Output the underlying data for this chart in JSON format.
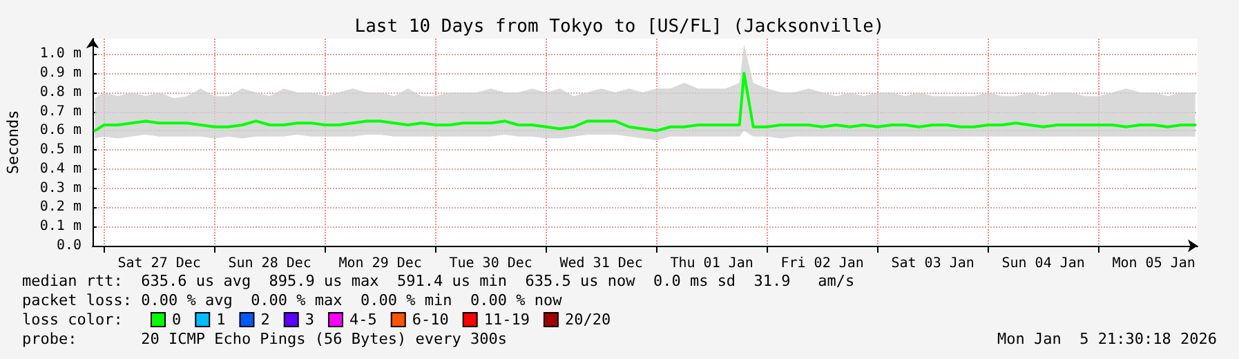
{
  "chart_data": {
    "type": "line",
    "title": "Last 10 Days from Tokyo to [US/FL] (Jacksonville)",
    "ylabel": "Seconds",
    "x": [
      "2025-12-26T22:00",
      "2025-12-27T00:00",
      "2025-12-27T03:00",
      "2025-12-27T06:00",
      "2025-12-27T09:00",
      "2025-12-27T12:00",
      "2025-12-27T15:00",
      "2025-12-27T18:00",
      "2025-12-27T21:00",
      "2025-12-28T00:00",
      "2025-12-28T03:00",
      "2025-12-28T06:00",
      "2025-12-28T09:00",
      "2025-12-28T12:00",
      "2025-12-28T15:00",
      "2025-12-28T18:00",
      "2025-12-28T21:00",
      "2025-12-29T00:00",
      "2025-12-29T03:00",
      "2025-12-29T06:00",
      "2025-12-29T09:00",
      "2025-12-29T12:00",
      "2025-12-29T15:00",
      "2025-12-29T18:00",
      "2025-12-29T21:00",
      "2025-12-30T00:00",
      "2025-12-30T03:00",
      "2025-12-30T06:00",
      "2025-12-30T09:00",
      "2025-12-30T12:00",
      "2025-12-30T15:00",
      "2025-12-30T18:00",
      "2025-12-30T21:00",
      "2025-12-31T00:00",
      "2025-12-31T03:00",
      "2025-12-31T06:00",
      "2025-12-31T09:00",
      "2025-12-31T12:00",
      "2025-12-31T15:00",
      "2025-12-31T18:00",
      "2025-12-31T21:00",
      "2026-01-01T00:00",
      "2026-01-01T03:00",
      "2026-01-01T06:00",
      "2026-01-01T09:00",
      "2026-01-01T12:00",
      "2026-01-01T15:00",
      "2026-01-01T18:00",
      "2026-01-01T19:00",
      "2026-01-01T21:00",
      "2026-01-02T00:00",
      "2026-01-02T03:00",
      "2026-01-02T06:00",
      "2026-01-02T09:00",
      "2026-01-02T12:00",
      "2026-01-02T15:00",
      "2026-01-02T18:00",
      "2026-01-02T21:00",
      "2026-01-03T00:00",
      "2026-01-03T03:00",
      "2026-01-03T06:00",
      "2026-01-03T09:00",
      "2026-01-03T12:00",
      "2026-01-03T15:00",
      "2026-01-03T18:00",
      "2026-01-03T21:00",
      "2026-01-04T00:00",
      "2026-01-04T03:00",
      "2026-01-04T06:00",
      "2026-01-04T09:00",
      "2026-01-04T12:00",
      "2026-01-04T15:00",
      "2026-01-04T18:00",
      "2026-01-04T21:00",
      "2026-01-05T00:00",
      "2026-01-05T03:00",
      "2026-01-05T06:00",
      "2026-01-05T09:00",
      "2026-01-05T12:00",
      "2026-01-05T15:00",
      "2026-01-05T18:00",
      "2026-01-05T21:00"
    ],
    "series": [
      {
        "name": "0",
        "color": "#00ff00",
        "values": [
          0.6,
          0.63,
          0.63,
          0.64,
          0.65,
          0.64,
          0.64,
          0.64,
          0.63,
          0.62,
          0.62,
          0.63,
          0.65,
          0.63,
          0.63,
          0.64,
          0.64,
          0.63,
          0.63,
          0.64,
          0.65,
          0.65,
          0.64,
          0.63,
          0.64,
          0.63,
          0.63,
          0.64,
          0.64,
          0.64,
          0.65,
          0.63,
          0.63,
          0.62,
          0.61,
          0.62,
          0.65,
          0.65,
          0.65,
          0.62,
          0.61,
          0.6,
          0.62,
          0.62,
          0.63,
          0.63,
          0.63,
          0.63,
          0.9,
          0.62,
          0.62,
          0.63,
          0.63,
          0.63,
          0.62,
          0.63,
          0.62,
          0.63,
          0.62,
          0.63,
          0.63,
          0.62,
          0.63,
          0.63,
          0.62,
          0.62,
          0.63,
          0.63,
          0.64,
          0.63,
          0.62,
          0.63,
          0.63,
          0.63,
          0.63,
          0.63,
          0.62,
          0.63,
          0.63,
          0.62,
          0.63,
          0.63
        ],
        "lower": [
          0.56,
          0.57,
          0.56,
          0.57,
          0.58,
          0.57,
          0.57,
          0.57,
          0.57,
          0.56,
          0.57,
          0.56,
          0.57,
          0.57,
          0.57,
          0.58,
          0.57,
          0.57,
          0.57,
          0.57,
          0.58,
          0.58,
          0.57,
          0.57,
          0.57,
          0.57,
          0.57,
          0.57,
          0.57,
          0.57,
          0.58,
          0.57,
          0.57,
          0.56,
          0.56,
          0.57,
          0.58,
          0.58,
          0.58,
          0.57,
          0.56,
          0.55,
          0.57,
          0.57,
          0.57,
          0.57,
          0.57,
          0.57,
          0.6,
          0.57,
          0.57,
          0.56,
          0.57,
          0.57,
          0.57,
          0.57,
          0.57,
          0.57,
          0.57,
          0.57,
          0.57,
          0.57,
          0.57,
          0.57,
          0.57,
          0.57,
          0.57,
          0.57,
          0.57,
          0.57,
          0.57,
          0.57,
          0.57,
          0.57,
          0.57,
          0.57,
          0.57,
          0.57,
          0.57,
          0.57,
          0.57,
          0.57
        ],
        "upper": [
          0.77,
          0.8,
          0.78,
          0.8,
          0.78,
          0.8,
          0.77,
          0.78,
          0.82,
          0.78,
          0.78,
          0.82,
          0.8,
          0.78,
          0.82,
          0.8,
          0.8,
          0.78,
          0.8,
          0.82,
          0.8,
          0.8,
          0.78,
          0.82,
          0.78,
          0.78,
          0.8,
          0.8,
          0.8,
          0.82,
          0.8,
          0.8,
          0.82,
          0.8,
          0.82,
          0.78,
          0.8,
          0.82,
          0.8,
          0.82,
          0.8,
          0.82,
          0.82,
          0.85,
          0.82,
          0.82,
          0.82,
          0.85,
          1.05,
          0.85,
          0.82,
          0.8,
          0.8,
          0.82,
          0.8,
          0.78,
          0.8,
          0.78,
          0.8,
          0.8,
          0.78,
          0.8,
          0.78,
          0.78,
          0.78,
          0.78,
          0.8,
          0.78,
          0.78,
          0.8,
          0.78,
          0.8,
          0.8,
          0.78,
          0.78,
          0.8,
          0.82,
          0.8,
          0.8,
          0.78,
          0.8,
          0.8
        ]
      },
      {
        "name": "1",
        "color": "#00bbff",
        "values": [
          null,
          null,
          null,
          null,
          null,
          null,
          null,
          null,
          null,
          null,
          null,
          null,
          null,
          null,
          null,
          null,
          null,
          null,
          null,
          null,
          null,
          null,
          null,
          null,
          null,
          null,
          null,
          null,
          null,
          null,
          null,
          null,
          null,
          null,
          null,
          null,
          null,
          null,
          null,
          null,
          null,
          null,
          null,
          null,
          null,
          null,
          null,
          null,
          null,
          null,
          null,
          null,
          null,
          null,
          null,
          null,
          null,
          null,
          null,
          null,
          null,
          null,
          null,
          null,
          null,
          null,
          null,
          null,
          null,
          null,
          null,
          null,
          null,
          null,
          null,
          null,
          null,
          null,
          null,
          null,
          null,
          null
        ]
      },
      {
        "name": "2",
        "color": "#0059ff",
        "values": [
          null,
          null,
          null,
          null,
          null,
          null,
          null,
          null,
          null,
          null,
          null,
          null,
          null,
          null,
          null,
          null,
          null,
          null,
          null,
          null,
          null,
          null,
          null,
          null,
          null,
          null,
          null,
          null,
          null,
          null,
          null,
          null,
          null,
          null,
          null,
          null,
          null,
          null,
          null,
          null,
          null,
          null,
          null,
          null,
          null,
          null,
          null,
          null,
          null,
          null,
          null,
          null,
          null,
          null,
          null,
          null,
          null,
          null,
          null,
          null,
          null,
          null,
          null,
          null,
          null,
          null,
          null,
          null,
          null,
          null,
          null,
          null,
          null,
          null,
          null,
          null,
          null,
          null,
          null,
          null,
          null,
          null
        ]
      },
      {
        "name": "3",
        "color": "#5e00ff",
        "values": [
          null,
          null,
          null,
          null,
          null,
          null,
          null,
          null,
          null,
          null,
          null,
          null,
          null,
          null,
          null,
          null,
          null,
          null,
          null,
          null,
          null,
          null,
          null,
          null,
          null,
          null,
          null,
          null,
          null,
          null,
          null,
          null,
          null,
          null,
          null,
          null,
          null,
          null,
          null,
          null,
          null,
          null,
          null,
          null,
          null,
          null,
          null,
          null,
          null,
          null,
          null,
          null,
          null,
          null,
          null,
          null,
          null,
          null,
          null,
          null,
          null,
          null,
          null,
          null,
          null,
          null,
          null,
          null,
          null,
          null,
          null,
          null,
          null,
          null,
          null,
          null,
          null,
          null,
          null,
          null,
          null,
          null
        ]
      },
      {
        "name": "4-5",
        "color": "#ff00ff",
        "values": [
          null,
          null,
          null,
          null,
          null,
          null,
          null,
          null,
          null,
          null,
          null,
          null,
          null,
          null,
          null,
          null,
          null,
          null,
          null,
          null,
          null,
          null,
          null,
          null,
          null,
          null,
          null,
          null,
          null,
          null,
          null,
          null,
          null,
          null,
          null,
          null,
          null,
          null,
          null,
          null,
          null,
          null,
          null,
          null,
          null,
          null,
          null,
          null,
          null,
          null,
          null,
          null,
          null,
          null,
          null,
          null,
          null,
          null,
          null,
          null,
          null,
          null,
          null,
          null,
          null,
          null,
          null,
          null,
          null,
          null,
          null,
          null,
          null,
          null,
          null,
          null,
          null,
          null,
          null,
          null,
          null,
          null
        ]
      },
      {
        "name": "6-10",
        "color": "#ff5500",
        "values": [
          null,
          null,
          null,
          null,
          null,
          null,
          null,
          null,
          null,
          null,
          null,
          null,
          null,
          null,
          null,
          null,
          null,
          null,
          null,
          null,
          null,
          null,
          null,
          null,
          null,
          null,
          null,
          null,
          null,
          null,
          null,
          null,
          null,
          null,
          null,
          null,
          null,
          null,
          null,
          null,
          null,
          null,
          null,
          null,
          null,
          null,
          null,
          null,
          null,
          null,
          null,
          null,
          null,
          null,
          null,
          null,
          null,
          null,
          null,
          null,
          null,
          null,
          null,
          null,
          null,
          null,
          null,
          null,
          null,
          null,
          null,
          null,
          null,
          null,
          null,
          null,
          null,
          null,
          null,
          null,
          null,
          null
        ]
      },
      {
        "name": "11-19",
        "color": "#ff0000",
        "values": [
          null,
          null,
          null,
          null,
          null,
          null,
          null,
          null,
          null,
          null,
          null,
          null,
          null,
          null,
          null,
          null,
          null,
          null,
          null,
          null,
          null,
          null,
          null,
          null,
          null,
          null,
          null,
          null,
          null,
          null,
          null,
          null,
          null,
          null,
          null,
          null,
          null,
          null,
          null,
          null,
          null,
          null,
          null,
          null,
          null,
          null,
          null,
          null,
          null,
          null,
          null,
          null,
          null,
          null,
          null,
          null,
          null,
          null,
          null,
          null,
          null,
          null,
          null,
          null,
          null,
          null,
          null,
          null,
          null,
          null,
          null,
          null,
          null,
          null,
          null,
          null,
          null,
          null,
          null,
          null,
          null,
          null
        ]
      },
      {
        "name": "20/20",
        "color": "#a10000",
        "values": [
          null,
          null,
          null,
          null,
          null,
          null,
          null,
          null,
          null,
          null,
          null,
          null,
          null,
          null,
          null,
          null,
          null,
          null,
          null,
          null,
          null,
          null,
          null,
          null,
          null,
          null,
          null,
          null,
          null,
          null,
          null,
          null,
          null,
          null,
          null,
          null,
          null,
          null,
          null,
          null,
          null,
          null,
          null,
          null,
          null,
          null,
          null,
          null,
          null,
          null,
          null,
          null,
          null,
          null,
          null,
          null,
          null,
          null,
          null,
          null,
          null,
          null,
          null,
          null,
          null,
          null,
          null,
          null,
          null,
          null,
          null,
          null,
          null,
          null,
          null,
          null,
          null,
          null,
          null,
          null,
          null,
          null
        ]
      }
    ],
    "xlim": [
      "2025-12-26T21:30",
      "2026-01-05T21:30"
    ],
    "xticks": [
      {
        "value": "2025-12-27T00:00",
        "label": null
      },
      {
        "value": "2025-12-27T12:00",
        "label": "Sat 27 Dec"
      },
      {
        "value": "2025-12-28T00:00",
        "label": null
      },
      {
        "value": "2025-12-28T12:00",
        "label": "Sun 28 Dec"
      },
      {
        "value": "2025-12-29T00:00",
        "label": null
      },
      {
        "value": "2025-12-29T12:00",
        "label": "Mon 29 Dec"
      },
      {
        "value": "2025-12-30T00:00",
        "label": null
      },
      {
        "value": "2025-12-30T12:00",
        "label": "Tue 30 Dec"
      },
      {
        "value": "2025-12-31T00:00",
        "label": null
      },
      {
        "value": "2025-12-31T12:00",
        "label": "Wed 31 Dec"
      },
      {
        "value": "2026-01-01T00:00",
        "label": null
      },
      {
        "value": "2026-01-01T12:00",
        "label": "Thu 01 Jan"
      },
      {
        "value": "2026-01-02T00:00",
        "label": null
      },
      {
        "value": "2026-01-02T12:00",
        "label": "Fri 02 Jan"
      },
      {
        "value": "2026-01-03T00:00",
        "label": null
      },
      {
        "value": "2026-01-03T12:00",
        "label": "Sat 03 Jan"
      },
      {
        "value": "2026-01-04T00:00",
        "label": null
      },
      {
        "value": "2026-01-04T12:00",
        "label": "Sun 04 Jan"
      },
      {
        "value": "2026-01-05T00:00",
        "label": null
      },
      {
        "value": "2026-01-05T12:00",
        "label": "Mon 05 Jan"
      }
    ],
    "ylim": [
      0,
      1.08
    ],
    "yticks": [
      {
        "value": 0,
        "label": "0.0"
      },
      {
        "value": 0.1,
        "label": "0.1 m"
      },
      {
        "value": 0.2,
        "label": "0.2 m"
      },
      {
        "value": 0.3,
        "label": "0.3 m"
      },
      {
        "value": 0.4,
        "label": "0.4 m"
      },
      {
        "value": 0.5,
        "label": "0.5 m"
      },
      {
        "value": 0.6,
        "label": "0.6 m"
      },
      {
        "value": 0.7,
        "label": "0.7 m"
      },
      {
        "value": 0.8,
        "label": "0.8 m"
      },
      {
        "value": 0.9,
        "label": "0.9 m"
      },
      {
        "value": 1.0,
        "label": "1.0 m"
      }
    ],
    "grid": true,
    "legend": "bottom",
    "marker": "none",
    "line_style": "solid",
    "annotations": [
      "median rtt:  635.6 us avg  895.9 us max  591.4 us min  635.5 us now  0.0 ms sd  31.9   am/s",
      "packet loss: 0.00 % avg  0.00 % max  0.00 % min  0.00 % now",
      "loss color:",
      "probe:       20 ICMP Echo Pings (56 Bytes) every 300s",
      "Mon Jan  5 21:30:18 2026"
    ]
  }
}
